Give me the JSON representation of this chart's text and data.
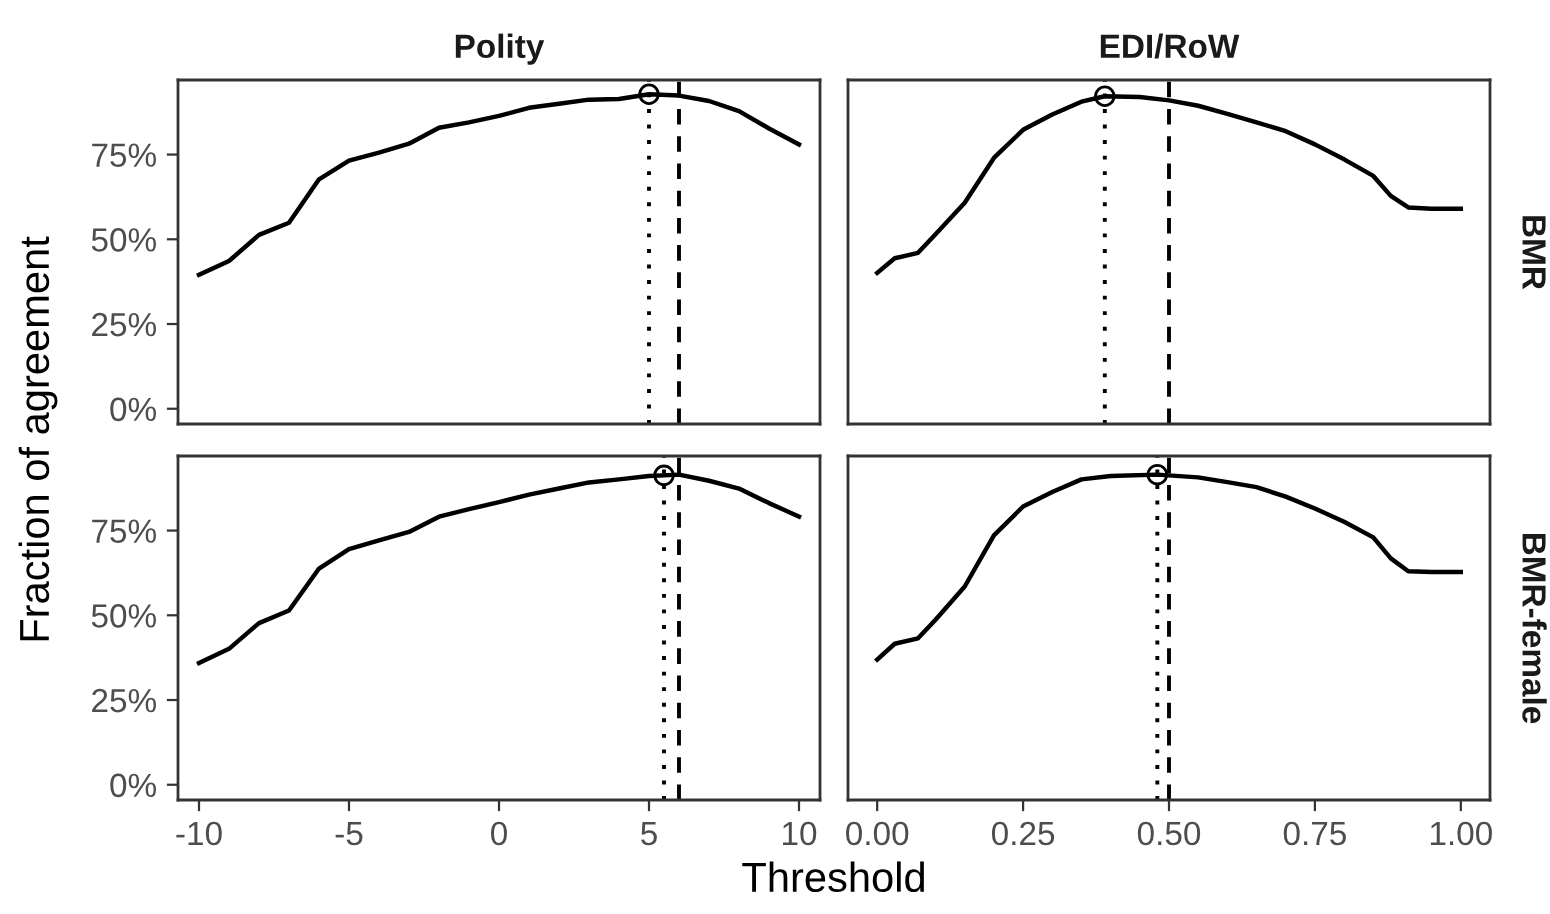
{
  "chart_data": [
    {
      "type": "line",
      "title": "Polity",
      "ylabel": "Fraction of agreement",
      "tick_labels": "y",
      "xlim": [
        -10.7,
        10.7
      ],
      "ylim": [
        -4.5,
        97
      ],
      "yticks": [
        {
          "value": 0,
          "label": "0%"
        },
        {
          "value": 25,
          "label": "25%"
        },
        {
          "value": 50,
          "label": "50%"
        },
        {
          "value": 75,
          "label": "75%"
        }
      ],
      "grid": false,
      "legend": false,
      "series": [
        {
          "type": "line",
          "color": "#000000",
          "marker": "none",
          "x": [
            -10,
            -9,
            -8,
            -7,
            -6,
            -5,
            -4,
            -3,
            -2,
            -1,
            0,
            1,
            2,
            3,
            4,
            5,
            6,
            7,
            8,
            9,
            10
          ],
          "values": [
            39.5,
            43.6,
            51.3,
            54.9,
            67.7,
            73.2,
            75.6,
            78.2,
            82.9,
            84.5,
            86.4,
            88.8,
            90.0,
            91.2,
            91.4,
            92.8,
            92.4,
            90.8,
            87.8,
            82.7,
            78.0
          ]
        },
        {
          "type": "scatter",
          "color": "#000000",
          "marker": "circle",
          "x": [
            5
          ],
          "values": [
            92.8
          ]
        }
      ],
      "ref_lines": [
        {
          "axis": "x",
          "value": 5,
          "line_style": "dotted",
          "color": "#000000"
        },
        {
          "axis": "x",
          "value": 6,
          "line_style": "dashed",
          "color": "#000000"
        }
      ]
    },
    {
      "type": "line",
      "title": "EDI/RoW",
      "y2label": "BMR",
      "tick_labels": false,
      "xlim": [
        -0.05,
        1.05
      ],
      "ylim": [
        -4.5,
        97
      ],
      "grid": false,
      "legend": false,
      "series": [
        {
          "type": "line",
          "color": "#000000",
          "marker": "none",
          "x": [
            0.0,
            0.03,
            0.07,
            0.1,
            0.15,
            0.2,
            0.25,
            0.3,
            0.35,
            0.39,
            0.45,
            0.5,
            0.55,
            0.6,
            0.65,
            0.7,
            0.75,
            0.8,
            0.85,
            0.88,
            0.91,
            0.95,
            1.0
          ],
          "values": [
            40.1,
            44.4,
            46.0,
            51.5,
            60.8,
            74.0,
            82.3,
            86.8,
            90.6,
            92.2,
            92.0,
            91.0,
            89.4,
            87.0,
            84.5,
            81.9,
            78.0,
            73.6,
            68.7,
            62.8,
            59.4,
            59.0,
            59.0
          ]
        },
        {
          "type": "scatter",
          "color": "#000000",
          "marker": "circle",
          "x": [
            0.39
          ],
          "values": [
            92.2
          ]
        }
      ],
      "ref_lines": [
        {
          "axis": "x",
          "value": 0.39,
          "line_style": "dotted",
          "color": "#000000"
        },
        {
          "axis": "x",
          "value": 0.5,
          "line_style": "dashed",
          "color": "#000000"
        }
      ]
    },
    {
      "type": "line",
      "xlabel": "Threshold",
      "xlim": [
        -10.7,
        10.7
      ],
      "xticks": [
        -10,
        -5,
        0,
        5,
        10
      ],
      "ylim": [
        -4.5,
        97
      ],
      "yticks": [
        {
          "value": 0,
          "label": "0%"
        },
        {
          "value": 25,
          "label": "25%"
        },
        {
          "value": 50,
          "label": "50%"
        },
        {
          "value": 75,
          "label": "75%"
        }
      ],
      "grid": false,
      "legend": false,
      "series": [
        {
          "type": "line",
          "color": "#000000",
          "marker": "none",
          "x": [
            -10,
            -9,
            -8,
            -7,
            -6,
            -5,
            -4,
            -3,
            -2,
            -1,
            0,
            1,
            2,
            3,
            4,
            5,
            6,
            7,
            8,
            9,
            10
          ],
          "values": [
            35.9,
            40.1,
            47.7,
            51.4,
            63.8,
            69.5,
            72.1,
            74.6,
            79.1,
            81.3,
            83.4,
            85.6,
            87.4,
            89.2,
            90.1,
            91.1,
            91.5,
            89.7,
            87.4,
            83.1,
            79.1
          ]
        },
        {
          "type": "scatter",
          "color": "#000000",
          "marker": "circle",
          "x": [
            5.5
          ],
          "values": [
            91.3
          ]
        }
      ],
      "ref_lines": [
        {
          "axis": "x",
          "value": 5.5,
          "line_style": "dotted",
          "color": "#000000"
        },
        {
          "axis": "x",
          "value": 6,
          "line_style": "dashed",
          "color": "#000000"
        }
      ]
    },
    {
      "type": "line",
      "y2label": "BMR-female",
      "tick_labels": "x",
      "xlim": [
        -0.05,
        1.05
      ],
      "xticks": [
        {
          "value": 0,
          "label": "0.00"
        },
        {
          "value": 0.25,
          "label": "0.25"
        },
        {
          "value": 0.5,
          "label": "0.50"
        },
        {
          "value": 0.75,
          "label": "0.75"
        },
        {
          "value": 1,
          "label": "1.00"
        }
      ],
      "ylim": [
        -4.5,
        97
      ],
      "grid": false,
      "legend": false,
      "series": [
        {
          "type": "line",
          "color": "#000000",
          "marker": "none",
          "x": [
            0.0,
            0.03,
            0.07,
            0.1,
            0.15,
            0.2,
            0.25,
            0.3,
            0.35,
            0.4,
            0.48,
            0.55,
            0.6,
            0.65,
            0.7,
            0.75,
            0.8,
            0.85,
            0.88,
            0.91,
            0.95,
            1.0
          ],
          "values": [
            36.9,
            41.6,
            43.2,
            48.7,
            58.5,
            73.6,
            82.1,
            86.4,
            90.1,
            91.1,
            91.5,
            90.7,
            89.3,
            87.8,
            85.0,
            81.5,
            77.6,
            73.0,
            66.8,
            63.0,
            62.8,
            62.8
          ]
        },
        {
          "type": "scatter",
          "color": "#000000",
          "marker": "circle",
          "x": [
            0.48
          ],
          "values": [
            91.5
          ]
        }
      ],
      "ref_lines": [
        {
          "axis": "x",
          "value": 0.48,
          "line_style": "dotted",
          "color": "#000000"
        },
        {
          "axis": "x",
          "value": 0.5,
          "line_style": "dashed",
          "color": "#000000"
        }
      ]
    }
  ]
}
